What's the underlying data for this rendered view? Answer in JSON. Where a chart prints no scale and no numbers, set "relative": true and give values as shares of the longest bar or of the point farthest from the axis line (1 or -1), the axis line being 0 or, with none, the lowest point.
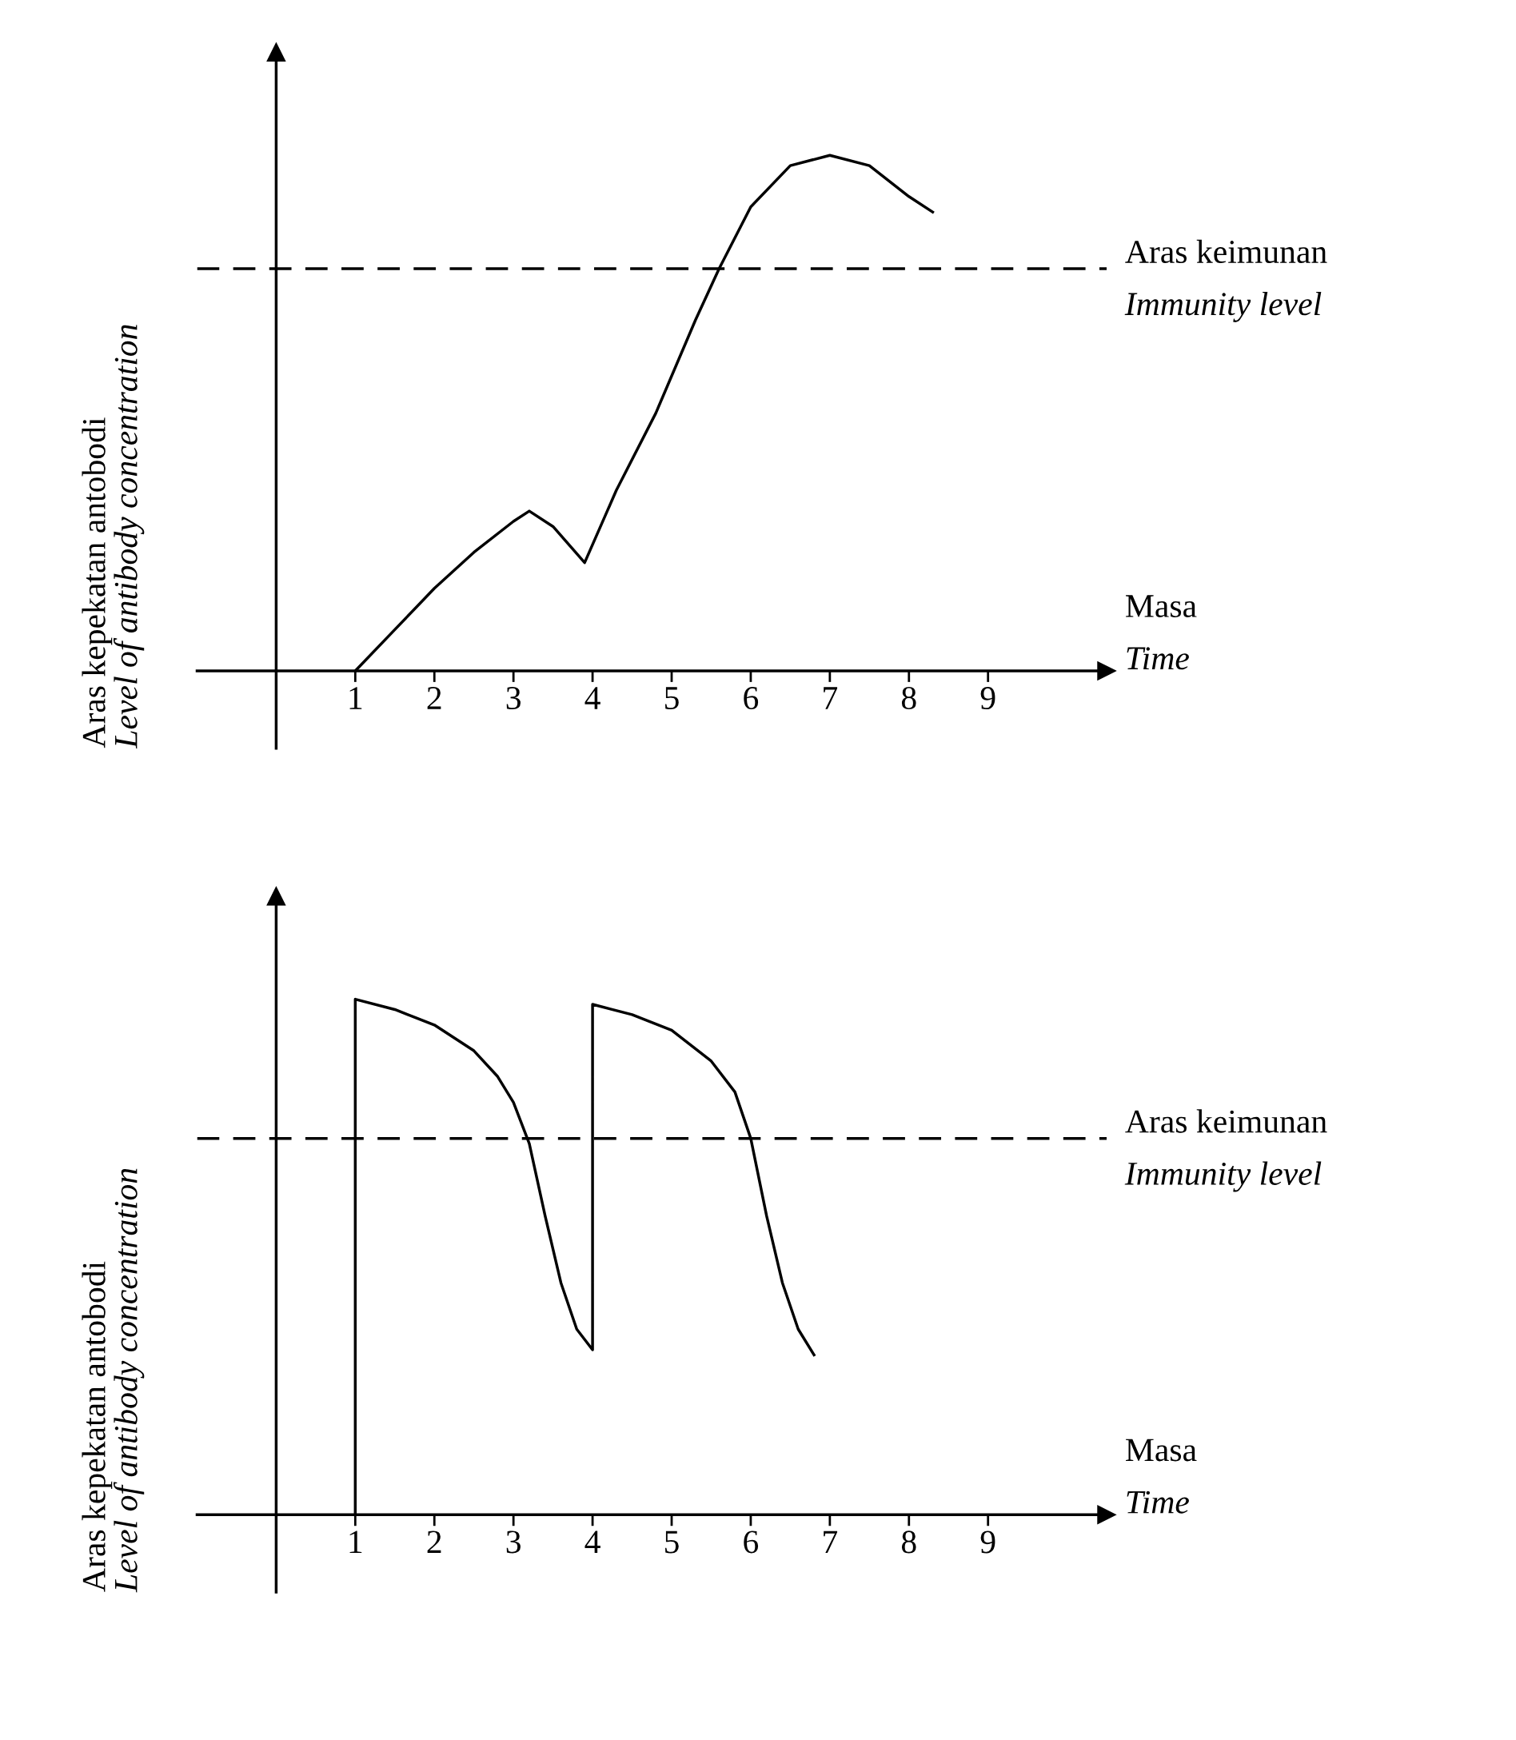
{
  "chart_data": [
    {
      "type": "line",
      "relative": true,
      "xlabel": "Masa\nTime",
      "ylabel": "Aras kepekatan antobodi\nLevel of antibody concentration",
      "xlim": [
        -1,
        10.5
      ],
      "xticks": [
        1,
        2,
        3,
        4,
        5,
        6,
        7,
        8,
        9
      ],
      "grid": false,
      "legend": false,
      "marker": "none",
      "line_style": "solid",
      "series": [
        {
          "color": "#000000",
          "x": [
            1,
            1.5,
            2,
            2.5,
            3,
            3.2,
            3.5,
            3.9,
            4.3,
            4.8,
            5.3,
            5.6,
            6,
            6.5,
            7,
            7.5,
            8,
            8.3
          ],
          "values": [
            0,
            0.08,
            0.16,
            0.23,
            0.29,
            0.31,
            0.28,
            0.21,
            0.35,
            0.5,
            0.68,
            0.78,
            0.9,
            0.98,
            1.0,
            0.98,
            0.92,
            0.89
          ]
        }
      ],
      "ref_lines": [
        {
          "axis": "y",
          "value": 0.78,
          "label": "Aras keimunan\nImmunity level",
          "line_style": "dashed",
          "color": "#000000"
        }
      ]
    },
    {
      "type": "line",
      "relative": true,
      "xlabel": "Masa\nTime",
      "ylabel": "Aras kepekatan antobodi\nLevel of antibody concentration",
      "xlim": [
        -1,
        10.5
      ],
      "xticks": [
        1,
        2,
        3,
        4,
        5,
        6,
        7,
        8,
        9
      ],
      "grid": false,
      "legend": false,
      "marker": "none",
      "line_style": "solid",
      "series": [
        {
          "color": "#000000",
          "x": [
            1,
            1,
            1.5,
            2,
            2.5,
            2.8,
            3,
            3.2,
            3.4,
            3.6,
            3.8,
            4,
            4,
            4.5,
            5,
            5.5,
            5.8,
            6,
            6.2,
            6.4,
            6.6,
            6.8
          ],
          "values": [
            0,
            1.0,
            0.98,
            0.95,
            0.9,
            0.85,
            0.8,
            0.72,
            0.58,
            0.45,
            0.36,
            0.32,
            0.99,
            0.97,
            0.94,
            0.88,
            0.82,
            0.73,
            0.58,
            0.45,
            0.36,
            0.31
          ]
        }
      ],
      "ref_lines": [
        {
          "axis": "y",
          "value": 0.73,
          "label": "Aras keimunan\nImmunity level",
          "line_style": "dashed",
          "color": "#000000"
        }
      ]
    }
  ]
}
